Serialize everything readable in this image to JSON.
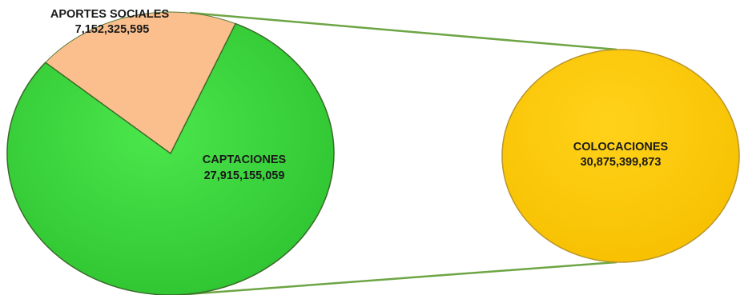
{
  "chart_data": {
    "type": "pie",
    "title": "",
    "slices": [
      {
        "label": "APORTES SOCIALES",
        "value": 7152325595,
        "value_label": "7,152,325,595",
        "color": "#FBBF8E"
      },
      {
        "label": "CAPTACIONES",
        "value": 27915155059,
        "value_label": "27,915,155,059",
        "color": "#38D43A"
      }
    ],
    "breakout": {
      "label": "COLOCACIONES",
      "value": 30875399873,
      "value_label": "30,875,399,873",
      "color": "#FFC800"
    },
    "connector_color": "#6DA544",
    "legend": "none"
  }
}
